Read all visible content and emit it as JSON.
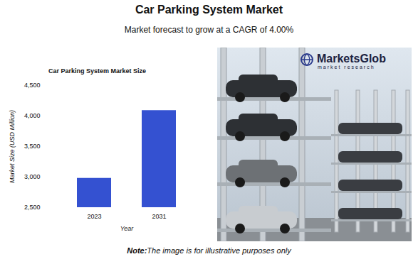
{
  "header": {
    "title": "Car Parking System Market",
    "subtitle": "Market forecast to grow at a CAGR of 4.00%"
  },
  "chart_data": {
    "type": "bar",
    "title": "Car Parking System Market Size",
    "x_label": "Year",
    "y_label": "Market Size (USD Million)",
    "categories": [
      "2023",
      "2031"
    ],
    "values": [
      2980,
      4090
    ],
    "color": "#3451d1",
    "ylim": [
      2500,
      4500
    ],
    "yticks": [
      {
        "value": 2500,
        "label": "2,500"
      },
      {
        "value": 3000,
        "label": "3,000"
      },
      {
        "value": 3500,
        "label": "3,500"
      },
      {
        "value": 4000,
        "label": "4,000"
      },
      {
        "value": 4500,
        "label": "4,500"
      }
    ],
    "grid": false
  },
  "logo": {
    "name": "MarketsGlob",
    "tagline": "market research"
  },
  "note": {
    "label": "Note:",
    "text": "The image is for illustrative purposes only"
  }
}
